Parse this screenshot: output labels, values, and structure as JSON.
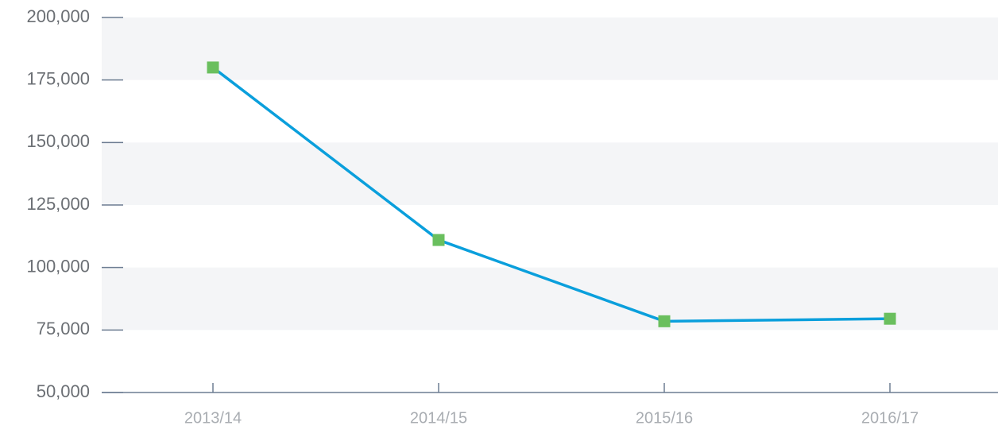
{
  "chart_data": {
    "type": "line",
    "categories": [
      "2013/14",
      "2014/15",
      "2015/16",
      "2016/17"
    ],
    "values": [
      180000,
      111000,
      78500,
      79500
    ],
    "color": "#0a9fdc",
    "marker_color": "#6abf5e",
    "marker": "square",
    "ylim": [
      50000,
      200000
    ],
    "yticks": [
      {
        "value": 50000,
        "label": "50,000"
      },
      {
        "value": 75000,
        "label": "75,000"
      },
      {
        "value": 100000,
        "label": "100,000"
      },
      {
        "value": 125000,
        "label": "125,000"
      },
      {
        "value": 150000,
        "label": "150,000"
      },
      {
        "value": 175000,
        "label": "175,000"
      },
      {
        "value": 200000,
        "label": "200,000"
      }
    ],
    "grid_bands": true,
    "band_color": "#f4f5f7",
    "axis_color": "#6d7d92"
  }
}
